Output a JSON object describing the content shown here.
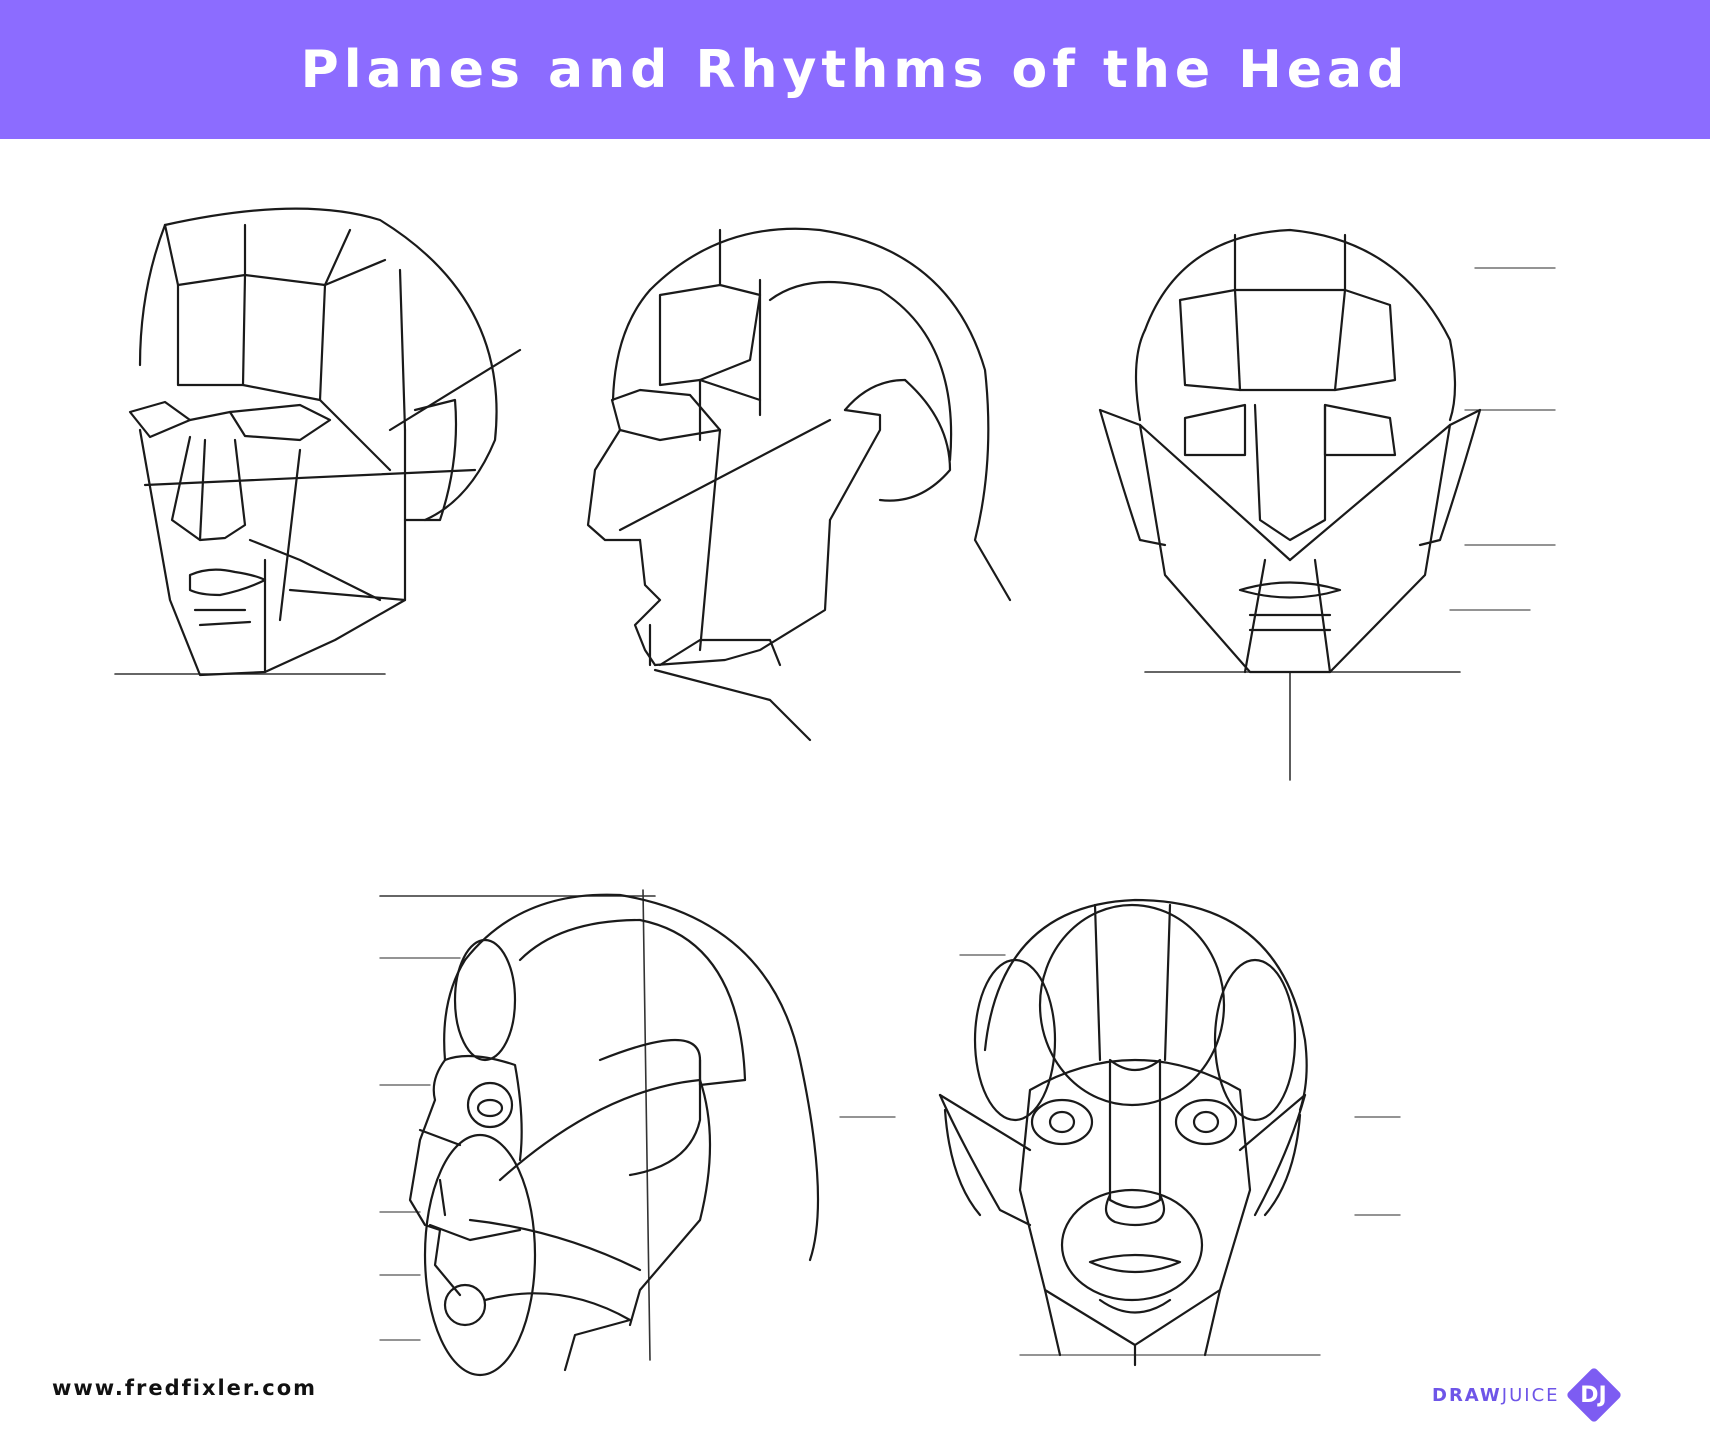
{
  "header": {
    "title": "Planes and Rhythms of the Head",
    "background_color": "#8c6cff"
  },
  "figures": [
    {
      "name": "three-quarter-planar-head"
    },
    {
      "name": "profile-planar-head"
    },
    {
      "name": "front-planar-head"
    },
    {
      "name": "profile-rhythm-head"
    },
    {
      "name": "front-rhythm-head"
    }
  ],
  "footer": {
    "url": "www.fredfixler.com",
    "logo_word_bold": "DRAW",
    "logo_word_light": "JUICE",
    "logo_initials": "DJ",
    "logo_color": "#7d5cf2"
  }
}
